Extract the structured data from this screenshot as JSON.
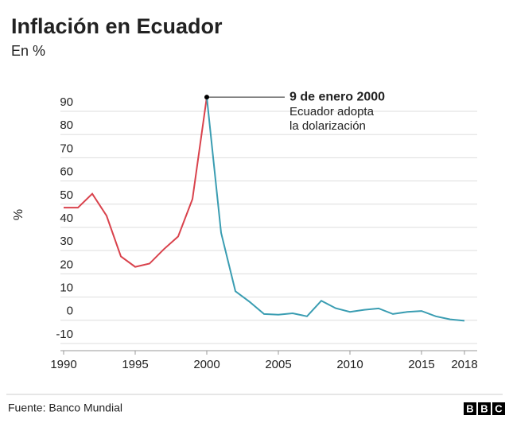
{
  "chart_data": {
    "type": "line",
    "title": "Inflación en Ecuador",
    "subtitle": "En %",
    "y_label": "%",
    "x": [
      1990,
      1991,
      1992,
      1993,
      1994,
      1995,
      1996,
      1997,
      1998,
      1999,
      2000,
      2001,
      2002,
      2003,
      2004,
      2005,
      2006,
      2007,
      2008,
      2009,
      2010,
      2011,
      2012,
      2013,
      2014,
      2015,
      2016,
      2017,
      2018
    ],
    "series": [
      {
        "color": "#d9424c",
        "values": [
          48.5,
          48.5,
          54.5,
          45,
          27.5,
          23,
          24.4,
          30.6,
          36.1,
          52.2,
          96.1,
          null,
          null,
          null,
          null,
          null,
          null,
          null,
          null,
          null,
          null,
          null,
          null,
          null,
          null,
          null,
          null,
          null,
          null
        ]
      },
      {
        "color": "#3a9db2",
        "values": [
          null,
          null,
          null,
          null,
          null,
          null,
          null,
          null,
          null,
          null,
          96.1,
          37.7,
          12.5,
          7.9,
          2.7,
          2.4,
          3.0,
          1.7,
          8.4,
          5.2,
          3.6,
          4.5,
          5.1,
          2.7,
          3.6,
          4.0,
          1.7,
          0.4,
          -0.2
        ]
      }
    ],
    "xlim": [
      1990,
      2018
    ],
    "xticks": [
      1990,
      1995,
      2000,
      2005,
      2010,
      2015,
      2018
    ],
    "ylim": [
      -12,
      100
    ],
    "yticks": [
      -10,
      0,
      10,
      20,
      30,
      40,
      50,
      60,
      70,
      80,
      90
    ],
    "grid": true,
    "annotation": {
      "title": "9 de enero 2000",
      "lines": [
        "Ecuador adopta",
        "la dolarización"
      ]
    },
    "source": "Fuente: Banco Mundial",
    "logo": [
      "B",
      "B",
      "C"
    ]
  }
}
